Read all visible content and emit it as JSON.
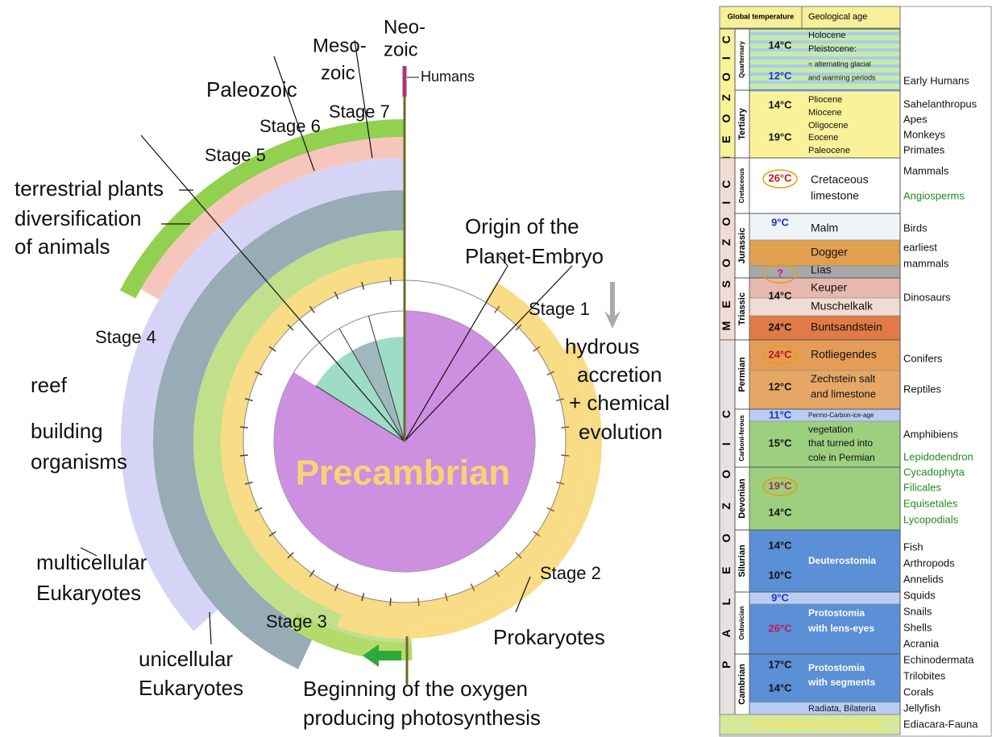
{
  "diagram": {
    "center_label": "Precambrian",
    "labels": [
      "Neo-",
      "zoic",
      "Meso-",
      "zoic",
      "Humans",
      "Paleozoic",
      "Stage 7",
      "Stage 6",
      "Stage 5",
      "terrestrial plants",
      "diversification",
      "of animals",
      "Origin of the",
      "Planet-Embryo",
      "Stage 1",
      "hydrous",
      "accretion",
      "+ chemical",
      "evolution",
      "Stage 4",
      "reef",
      "building",
      "organisms",
      "multicellular",
      "Eukaryotes",
      "Stage 2",
      "Stage 3",
      "Prokaryotes",
      "unicellular",
      "Eukaryotes",
      "Beginning of the oxygen",
      "producing photosynthesis"
    ]
  },
  "table": {
    "header": [
      "Global temperature",
      "Geological age"
    ],
    "eras": [
      "NEOZOIC",
      "MESOZOIC",
      "PALEOZOIC"
    ],
    "periods": [
      "Quarternary",
      "Tertiary",
      "Cretaceous",
      "Jurassic",
      "Triassic",
      "Permian",
      "Carboni-ferous",
      "Devonian",
      "Silurian",
      "Ordovician",
      "Cambrian"
    ],
    "temperatures": [
      "14°C",
      "12°C",
      "14°C",
      "19°C",
      "26°C",
      "9°C",
      "?",
      "14°C",
      "24°C",
      "24°C",
      "12°C",
      "11°C",
      "15°C",
      "19°C",
      "14°C",
      "14°C",
      "10°C",
      "9°C",
      "26°C",
      "17°C",
      "14°C"
    ],
    "ages": [
      "Holocene",
      "Pleistocene:",
      "= alternating  glacial",
      "and warming periods",
      "Pliocene",
      "Miocene",
      "Oligocene",
      "Eocene",
      "Paleocene",
      "Cretaceous",
      "limestone",
      "Malm",
      "Dogger",
      "Lias",
      "Keuper",
      "Muschelkalk",
      "Buntsandstein",
      "Rotliegendes",
      "Zechstein salt",
      "and limestone",
      "Permo-Carbon-ice-age",
      "vegetation",
      "that turned into",
      "cole in Permian",
      "Deuterostomia",
      "Protostomia",
      "with lens-eyes",
      "Protostomia",
      "with segments",
      "Radiata, Bilateria"
    ],
    "precambrian": "Precambrian Flora~Fauna"
  },
  "life_forms": [
    "Early Humans",
    "Sahelanthropus",
    "Apes",
    "Monkeys",
    "Primates",
    "Mammals",
    "Angiosperms",
    "Birds",
    "earliest",
    "mammals",
    "Dinosaurs",
    "Conifers",
    "Reptiles",
    "Amphibiens",
    "Lepidodendron",
    "Cycadophyta",
    "Filicales",
    "Equisetales",
    "Lycopodials",
    "Fish",
    "Arthropods",
    "Annelids",
    "Squids",
    "Snails",
    "Shells",
    "Acrania",
    "Echinodermata",
    "Trilobites",
    "Corals",
    "Jellyfish",
    "Ediacara-Fauna"
  ]
}
